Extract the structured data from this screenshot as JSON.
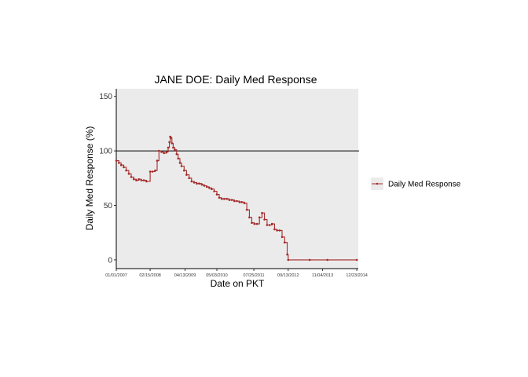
{
  "chart_data": {
    "type": "line",
    "title": "JANE DOE: Daily Med Response",
    "xlabel": "Date on PKT",
    "ylabel": "Daily Med Response (%)",
    "x_is_date": true,
    "xlim": [
      "2007-01-01",
      "2015-01-10"
    ],
    "ylim": [
      -8,
      157
    ],
    "y_ticks": [
      0,
      50,
      100,
      150
    ],
    "x_ticks": [
      {
        "date": "2007-01-01",
        "label": "01/01/2007"
      },
      {
        "date": "2008-02-15",
        "label": "02/15/2008"
      },
      {
        "date": "2009-04-13",
        "label": "04/13/2009"
      },
      {
        "date": "2010-05-03",
        "label": "05/03/2010"
      },
      {
        "date": "2011-07-25",
        "label": "07/25/2011"
      },
      {
        "date": "2012-09-13",
        "label": "09/13/2012"
      },
      {
        "date": "2013-11-04",
        "label": "11/04/2013"
      },
      {
        "date": "2014-12-23",
        "label": "12/23/2014"
      }
    ],
    "reference_line": {
      "y": 100,
      "color": "#000000"
    },
    "grid": false,
    "panel_background": "#ebebeb",
    "legend_position": "right",
    "series": [
      {
        "name": "Daily Med Response",
        "color": "#a52a2a",
        "points": [
          [
            "2007-01-01",
            91
          ],
          [
            "2007-02-01",
            89
          ],
          [
            "2007-03-01",
            87
          ],
          [
            "2007-04-01",
            85
          ],
          [
            "2007-05-01",
            82
          ],
          [
            "2007-06-01",
            79
          ],
          [
            "2007-07-01",
            76
          ],
          [
            "2007-08-01",
            74
          ],
          [
            "2007-09-01",
            73
          ],
          [
            "2007-10-01",
            74
          ],
          [
            "2007-11-01",
            73
          ],
          [
            "2007-12-01",
            73
          ],
          [
            "2008-01-01",
            72
          ],
          [
            "2008-02-15",
            81
          ],
          [
            "2008-03-15",
            81
          ],
          [
            "2008-04-15",
            82
          ],
          [
            "2008-05-10",
            91
          ],
          [
            "2008-06-01",
            100
          ],
          [
            "2008-07-01",
            99
          ],
          [
            "2008-08-01",
            98
          ],
          [
            "2008-09-01",
            99
          ],
          [
            "2008-09-20",
            103
          ],
          [
            "2008-10-05",
            108
          ],
          [
            "2008-10-15",
            113
          ],
          [
            "2008-10-25",
            112
          ],
          [
            "2008-11-05",
            107
          ],
          [
            "2008-11-20",
            103
          ],
          [
            "2008-12-10",
            101
          ],
          [
            "2009-01-01",
            97
          ],
          [
            "2009-01-20",
            93
          ],
          [
            "2009-02-10",
            89
          ],
          [
            "2009-03-01",
            86
          ],
          [
            "2009-04-01",
            82
          ],
          [
            "2009-05-01",
            78
          ],
          [
            "2009-06-01",
            75
          ],
          [
            "2009-07-01",
            72
          ],
          [
            "2009-08-01",
            71
          ],
          [
            "2009-09-01",
            70
          ],
          [
            "2009-10-01",
            70
          ],
          [
            "2009-11-01",
            69
          ],
          [
            "2009-12-01",
            68
          ],
          [
            "2010-01-01",
            67
          ],
          [
            "2010-02-01",
            66
          ],
          [
            "2010-03-01",
            65
          ],
          [
            "2010-04-01",
            63
          ],
          [
            "2010-05-03",
            60
          ],
          [
            "2010-06-01",
            57
          ],
          [
            "2010-07-01",
            56
          ],
          [
            "2010-08-01",
            56
          ],
          [
            "2010-09-01",
            56
          ],
          [
            "2010-10-01",
            55
          ],
          [
            "2010-11-01",
            55
          ],
          [
            "2010-12-01",
            54
          ],
          [
            "2011-01-01",
            54
          ],
          [
            "2011-02-01",
            53
          ],
          [
            "2011-03-01",
            53
          ],
          [
            "2011-04-01",
            52
          ],
          [
            "2011-05-01",
            46
          ],
          [
            "2011-06-01",
            39
          ],
          [
            "2011-07-01",
            34
          ],
          [
            "2011-08-01",
            33
          ],
          [
            "2011-09-01",
            33
          ],
          [
            "2011-10-01",
            39
          ],
          [
            "2011-11-01",
            43
          ],
          [
            "2011-12-01",
            37
          ],
          [
            "2012-01-01",
            32
          ],
          [
            "2012-02-01",
            32
          ],
          [
            "2012-03-01",
            33
          ],
          [
            "2012-04-01",
            28
          ],
          [
            "2012-05-01",
            27
          ],
          [
            "2012-06-01",
            27
          ],
          [
            "2012-07-01",
            21
          ],
          [
            "2012-08-01",
            16
          ],
          [
            "2012-09-01",
            5
          ],
          [
            "2012-09-13",
            0
          ],
          [
            "2013-06-01",
            0
          ],
          [
            "2014-01-01",
            0
          ],
          [
            "2014-12-23",
            0
          ]
        ]
      }
    ]
  }
}
